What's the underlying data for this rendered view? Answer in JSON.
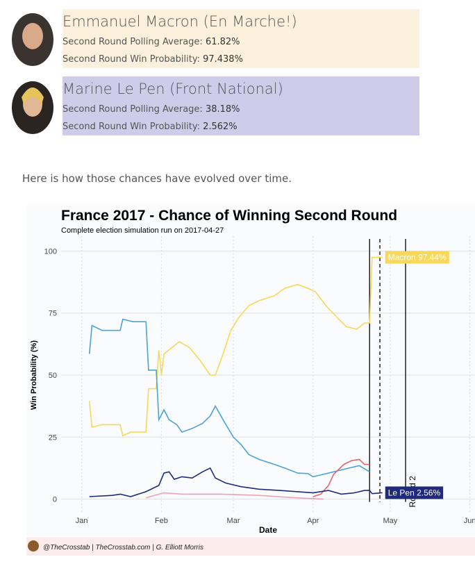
{
  "candidates": [
    {
      "name": "Emmanuel Macron (En Marche!)",
      "polling_label": "Second Round Polling Average:",
      "polling": "61.82%",
      "win_label": "Second Round Win Probability:",
      "win": "97.438%",
      "color": "#fdf0dc"
    },
    {
      "name": "Marine Le Pen (Front National)",
      "polling_label": "Second Round Polling Average:",
      "polling": "38.18%",
      "win_label": "Second Round Win Probability:",
      "win": "2.562%",
      "color": "#cfcce9"
    }
  ],
  "intro": "Here is how those chances have evolved over time.",
  "credit": "@TheCrosstab | TheCrosstab.com | G. Elliott Morris",
  "chart_data": {
    "type": "line",
    "title": "France 2017 - Chance of Winning Second Round",
    "subtitle": "Complete election simulation run on 2017-04-27",
    "x_label": "Date",
    "y_label": "Win Probability (%)",
    "xlim": [
      -7,
      154
    ],
    "ylim": [
      -6,
      106
    ],
    "xticks": [
      {
        "value": 1,
        "label": "Jan"
      },
      {
        "value": 32,
        "label": "Feb"
      },
      {
        "value": 60,
        "label": "Mar"
      },
      {
        "value": 91,
        "label": "Apr"
      },
      {
        "value": 121,
        "label": "May"
      },
      {
        "value": 152,
        "label": "Jun"
      }
    ],
    "yticks": [
      0,
      25,
      50,
      75,
      100
    ],
    "grid": true,
    "vlines": [
      {
        "x": 113,
        "style": "solid"
      },
      {
        "x": 117,
        "style": "dashed"
      },
      {
        "x": 127,
        "style": "solid",
        "label": "Round 2"
      }
    ],
    "series": [
      {
        "color": "#f7d85a",
        "end_label": "Macron 97.44%",
        "x": [
          4,
          5,
          9,
          16,
          17,
          20,
          26,
          27,
          30,
          31,
          32,
          33,
          36,
          39,
          43,
          47,
          51,
          53,
          56,
          59,
          62,
          66,
          70,
          76,
          80,
          85,
          89,
          92,
          96,
          101,
          104,
          108,
          111,
          113,
          114,
          118
        ],
        "values": [
          39.5,
          29,
          30,
          30,
          25.5,
          27,
          27,
          44.5,
          44.5,
          60,
          50,
          58.5,
          61,
          63.5,
          61,
          56,
          50,
          50,
          58.5,
          68,
          73,
          78,
          80,
          82,
          85,
          86.5,
          85,
          83.5,
          78,
          72.5,
          69.5,
          68.5,
          71,
          71,
          97.5,
          97.44
        ]
      },
      {
        "color": "#4ba3d6",
        "x": [
          4,
          5,
          9,
          16,
          17,
          21,
          26,
          27,
          30,
          31,
          33,
          35,
          38,
          40,
          44,
          48,
          51,
          53,
          56,
          60,
          63,
          66,
          70,
          76,
          80,
          85,
          89,
          91,
          95,
          99,
          105,
          109,
          113
        ],
        "values": [
          58.5,
          70,
          68,
          68,
          72.5,
          71.5,
          71.5,
          52,
          52,
          32,
          36,
          32,
          30,
          27,
          28.5,
          30.5,
          33.5,
          37.5,
          32,
          25,
          22,
          18,
          16,
          14,
          12.5,
          10.5,
          10.3,
          9,
          10,
          11,
          12.5,
          13.5,
          11
        ]
      },
      {
        "color": "#e8646a",
        "x": [
          91,
          94,
          97,
          99,
          103,
          106,
          109,
          111,
          113
        ],
        "values": [
          1,
          2,
          5.5,
          10,
          14,
          15.5,
          16,
          14,
          14
        ]
      },
      {
        "color": "#f2a0b4",
        "x": [
          26,
          31,
          33,
          40,
          55,
          70,
          85,
          95
        ],
        "values": [
          0.5,
          2,
          2.5,
          2,
          2,
          1.5,
          0.5,
          0
        ]
      },
      {
        "color": "#1f2a7a",
        "end_label": "Le Pen 2.56%",
        "x": [
          4,
          13,
          16,
          20,
          26,
          31,
          33,
          35,
          37,
          40,
          44,
          48,
          51,
          53,
          57,
          63,
          70,
          78,
          85,
          91,
          97,
          102,
          107,
          111,
          113,
          114,
          118
        ],
        "values": [
          1,
          1.5,
          2,
          1,
          3,
          5.5,
          10.5,
          11,
          8,
          9,
          8.5,
          11,
          12.5,
          8.5,
          6.5,
          5,
          4,
          3.5,
          3,
          2.5,
          3.5,
          2,
          2.5,
          3.5,
          3.5,
          2.2,
          2.56
        ]
      }
    ]
  }
}
